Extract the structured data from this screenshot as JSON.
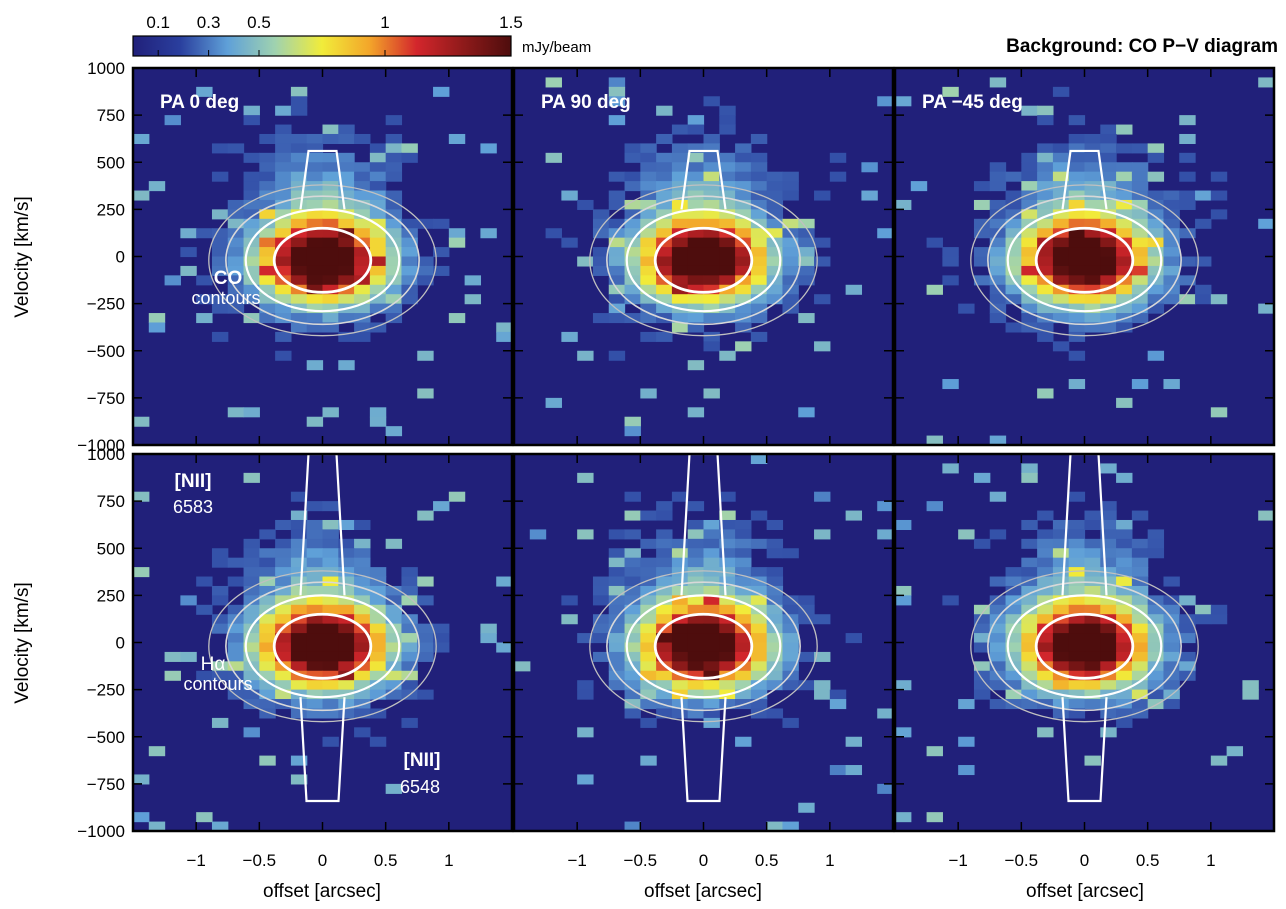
{
  "colorbar": {
    "ticks": [
      "0.1",
      "0.3",
      "0.5",
      "1",
      "1.5"
    ],
    "tick_values": [
      0.1,
      0.3,
      0.5,
      1,
      1.5
    ],
    "range": [
      0,
      1.5
    ],
    "unit": "mJy/beam",
    "colors": [
      "#21207a",
      "#2a3f9e",
      "#5fa0d8",
      "#9fd2b0",
      "#f1ec3a",
      "#f3a62a",
      "#d3262c",
      "#8e1a1a",
      "#4e0d0d"
    ]
  },
  "figure_title": "Background: CO P−V diagram",
  "panel_titles": [
    "PA 0 deg",
    "PA 90 deg",
    "PA −45 deg"
  ],
  "annotations": {
    "co_label": "CO",
    "co_contours": "contours",
    "nii_top": "[NII]",
    "nii_top_wave": "6583",
    "ha_label": "Hα",
    "ha_contours": "contours",
    "nii_bottom": "[NII]",
    "nii_bottom_wave": "6548"
  },
  "chart_data": {
    "type": "heatmap",
    "layout": "2 rows x 3 columns",
    "xlabel": "offset [arcsec]",
    "ylabel": "Velocity [km/s]",
    "x_ticks": [
      "−1",
      "−0.5",
      "0",
      "0.5",
      "1"
    ],
    "x_tick_values": [
      -1,
      -0.5,
      0,
      0.5,
      1
    ],
    "y_ticks": [
      "1000",
      "750",
      "500",
      "250",
      "0",
      "−250",
      "−500",
      "−750",
      "−1000"
    ],
    "y_tick_values": [
      1000,
      750,
      500,
      250,
      0,
      -250,
      -500,
      -750,
      -1000
    ],
    "xlim": [
      -1.5,
      1.5
    ],
    "ylim": [
      -1000,
      1000
    ],
    "background": "CO P-V diagram",
    "rows": [
      {
        "contours": "CO",
        "panels": [
          {
            "pa": 0,
            "peak_x": 0.0,
            "peak_v": -20,
            "core_dx": 0.45,
            "core_dv": 200
          },
          {
            "pa": 90,
            "peak_x": 0.0,
            "peak_v": -20,
            "core_dx": 0.45,
            "core_dv": 200
          },
          {
            "pa": -45,
            "peak_x": 0.0,
            "peak_v": -20,
            "core_dx": 0.45,
            "core_dv": 200
          }
        ]
      },
      {
        "contours": "Hα",
        "panels": [
          {
            "pa": 0,
            "peak_x": 0.0,
            "peak_v": -20,
            "core_dx": 0.45,
            "core_dv": 200
          },
          {
            "pa": 90,
            "peak_x": 0.0,
            "peak_v": -20,
            "core_dx": 0.45,
            "core_dv": 200
          },
          {
            "pa": -45,
            "peak_x": 0.0,
            "peak_v": -20,
            "core_dx": 0.45,
            "core_dv": 200
          }
        ]
      }
    ]
  }
}
